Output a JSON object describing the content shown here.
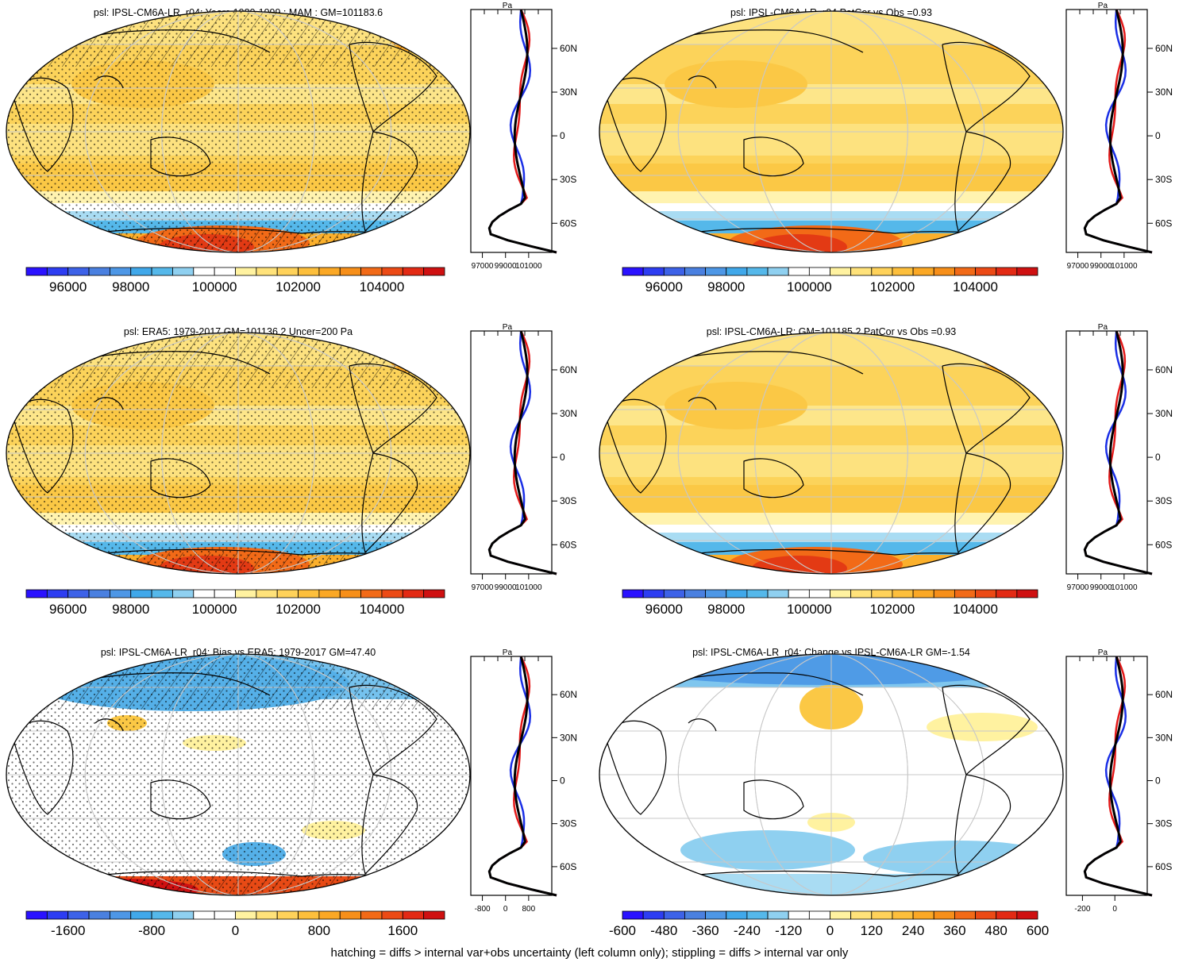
{
  "footer_note": "hatching = diffs > internal var+obs uncertainty (left column only); stippling = diffs > internal var only",
  "chart_data": [
    {
      "type": "map",
      "id": "p1",
      "title": "psl: IPSL-CM6A-LR_r04: Years 1980-1999 : MAM : GM=101183.6",
      "colorbar": {
        "colors": [
          "#2a12ff",
          "#2d3df2",
          "#3d62e8",
          "#4a80e0",
          "#4d97e6",
          "#40a8ea",
          "#55b8ea",
          "#8fd0f0",
          "#ffffff",
          "#ffffff",
          "#fff2a0",
          "#ffe27a",
          "#ffd25a",
          "#fdbf3c",
          "#fba825",
          "#f78f19",
          "#f26a17",
          "#ec4a15",
          "#e32a14",
          "#cf1011"
        ],
        "labels": [
          "96000",
          "98000",
          "100000",
          "102000",
          "104000"
        ],
        "label_positions": [
          2,
          5,
          9,
          13,
          17
        ]
      },
      "profile": {
        "xticks": [
          "97000",
          "99000",
          "101000"
        ],
        "top_label": "Pa",
        "lat_ticks": [
          "60N",
          "30N",
          "0",
          "30S",
          "60S"
        ],
        "show_lat_labels": false
      }
    },
    {
      "type": "map",
      "id": "p2",
      "title": "psl: IPSL-CM6A-LR_r04 PatCor vs Obs =0.93",
      "colorbar": {
        "colors": [
          "#2a12ff",
          "#2d3df2",
          "#3d62e8",
          "#4a80e0",
          "#4d97e6",
          "#40a8ea",
          "#55b8ea",
          "#8fd0f0",
          "#ffffff",
          "#ffffff",
          "#fff2a0",
          "#ffe27a",
          "#ffd25a",
          "#fdbf3c",
          "#fba825",
          "#f78f19",
          "#f26a17",
          "#ec4a15",
          "#e32a14",
          "#cf1011"
        ],
        "labels": [
          "96000",
          "98000",
          "100000",
          "102000",
          "104000"
        ],
        "label_positions": [
          2,
          5,
          9,
          13,
          17
        ]
      },
      "profile": {
        "xticks": [
          "97000",
          "99000",
          "101000"
        ],
        "top_label": "Pa",
        "lat_ticks": [
          "60N",
          "30N",
          "0",
          "30S",
          "60S"
        ],
        "show_lat_labels": true
      }
    },
    {
      "type": "map",
      "id": "p3",
      "title": "psl: ERA5: 1979-2017 GM=101136.2 Uncer=200 Pa",
      "colorbar": {
        "colors": [
          "#2a12ff",
          "#2d3df2",
          "#3d62e8",
          "#4a80e0",
          "#4d97e6",
          "#40a8ea",
          "#55b8ea",
          "#8fd0f0",
          "#ffffff",
          "#ffffff",
          "#fff2a0",
          "#ffe27a",
          "#ffd25a",
          "#fdbf3c",
          "#fba825",
          "#f78f19",
          "#f26a17",
          "#ec4a15",
          "#e32a14",
          "#cf1011"
        ],
        "labels": [
          "96000",
          "98000",
          "100000",
          "102000",
          "104000"
        ],
        "label_positions": [
          2,
          5,
          9,
          13,
          17
        ]
      },
      "profile": {
        "xticks": [
          "97000",
          "99000",
          "101000"
        ],
        "top_label": "Pa",
        "lat_ticks": [
          "60N",
          "30N",
          "0",
          "30S",
          "60S"
        ],
        "show_lat_labels": true
      }
    },
    {
      "type": "map",
      "id": "p4",
      "title": "psl: IPSL-CM6A-LR: GM=101185.2 PatCor vs Obs =0.93",
      "colorbar": {
        "colors": [
          "#2a12ff",
          "#2d3df2",
          "#3d62e8",
          "#4a80e0",
          "#4d97e6",
          "#40a8ea",
          "#55b8ea",
          "#8fd0f0",
          "#ffffff",
          "#ffffff",
          "#fff2a0",
          "#ffe27a",
          "#ffd25a",
          "#fdbf3c",
          "#fba825",
          "#f78f19",
          "#f26a17",
          "#ec4a15",
          "#e32a14",
          "#cf1011"
        ],
        "labels": [
          "96000",
          "98000",
          "100000",
          "102000",
          "104000"
        ],
        "label_positions": [
          2,
          5,
          9,
          13,
          17
        ]
      },
      "profile": {
        "xticks": [
          "97000",
          "99000",
          "101000"
        ],
        "top_label": "Pa",
        "lat_ticks": [
          "60N",
          "30N",
          "0",
          "30S",
          "60S"
        ],
        "show_lat_labels": true
      }
    },
    {
      "type": "map",
      "id": "p5",
      "title": "psl: IPSL-CM6A-LR_r04: Bias vs ERA5: 1979-2017 GM=47.40",
      "colorbar": {
        "colors": [
          "#2a12ff",
          "#2d3df2",
          "#3d62e8",
          "#4a80e0",
          "#4d97e6",
          "#40a8ea",
          "#55b8ea",
          "#8fd0f0",
          "#ffffff",
          "#ffffff",
          "#fff2a0",
          "#ffe27a",
          "#ffd25a",
          "#fdbf3c",
          "#fba825",
          "#f78f19",
          "#f26a17",
          "#ec4a15",
          "#e32a14",
          "#cf1011"
        ],
        "labels": [
          "-1600",
          "-800",
          "0",
          "800",
          "1600"
        ],
        "label_positions": [
          2,
          6,
          10,
          14,
          18
        ]
      },
      "profile": {
        "xticks": [
          "-800",
          "0",
          "800"
        ],
        "top_label": "Pa",
        "lat_ticks": [
          "60N",
          "30N",
          "0",
          "30S",
          "60S"
        ],
        "show_lat_labels": true
      }
    },
    {
      "type": "map",
      "id": "p6",
      "title": "psl: IPSL-CM6A-LR_r04: Change vs IPSL-CM6A-LR GM=-1.54",
      "colorbar": {
        "colors": [
          "#2a12ff",
          "#2d3df2",
          "#3d62e8",
          "#4a80e0",
          "#4d97e6",
          "#40a8ea",
          "#55b8ea",
          "#8fd0f0",
          "#ffffff",
          "#ffffff",
          "#fff2a0",
          "#ffe27a",
          "#ffd25a",
          "#fdbf3c",
          "#fba825",
          "#f78f19",
          "#f26a17",
          "#ec4a15",
          "#e32a14",
          "#cf1011"
        ],
        "labels": [
          "-600",
          "-480",
          "-360",
          "-240",
          "-120",
          "0",
          "120",
          "240",
          "360",
          "480",
          "600"
        ],
        "label_positions": [
          0,
          2,
          4,
          6,
          8,
          10,
          12,
          14,
          16,
          18,
          20
        ]
      },
      "profile": {
        "xticks": [
          "-200",
          "0"
        ],
        "top_label": "Pa",
        "lat_ticks": [
          "60N",
          "30N",
          "0",
          "30S",
          "60S"
        ],
        "show_lat_labels": true
      }
    }
  ]
}
